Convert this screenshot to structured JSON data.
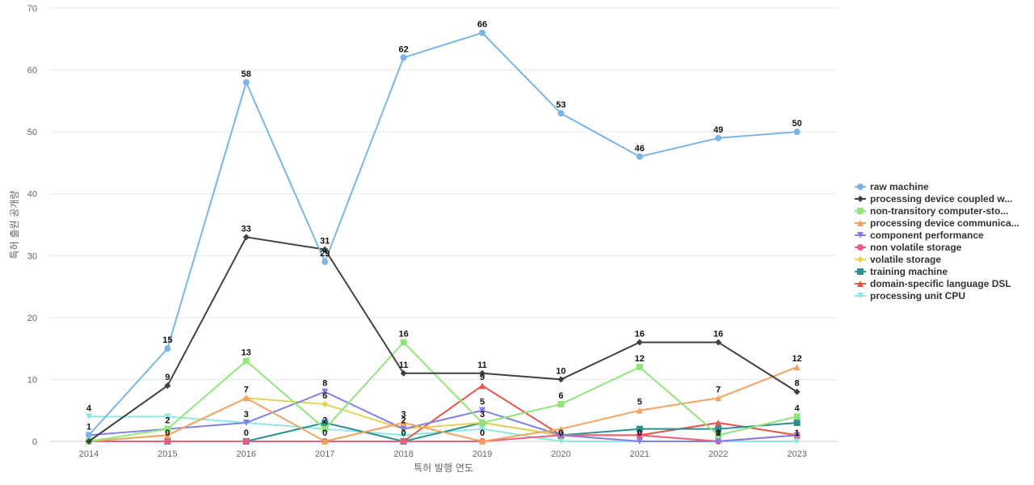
{
  "chart_data": {
    "type": "line",
    "title": "",
    "xlabel": "특허 발행 연도",
    "ylabel": "특허 출원 공개량",
    "x": [
      "2014",
      "2015",
      "2016",
      "2017",
      "2018",
      "2019",
      "2020",
      "2021",
      "2022",
      "2023"
    ],
    "ylim": [
      0,
      70
    ],
    "yticks": [
      0,
      10,
      20,
      30,
      40,
      50,
      60,
      70
    ],
    "grid": true,
    "legend_position": "right",
    "series": [
      {
        "name": "raw machine",
        "color": "#7ab5e6",
        "marker": "circle",
        "values": [
          1,
          15,
          58,
          29,
          62,
          66,
          53,
          46,
          49,
          50
        ]
      },
      {
        "name": "processing device coupled w...",
        "color": "#404040",
        "marker": "diamond",
        "values": [
          0,
          9,
          33,
          31,
          11,
          11,
          10,
          16,
          16,
          8
        ]
      },
      {
        "name": "non-transitory computer-sto...",
        "color": "#90e67a",
        "marker": "square",
        "values": [
          0,
          2,
          13,
          2,
          16,
          3,
          6,
          12,
          1,
          4
        ]
      },
      {
        "name": "processing device communica...",
        "color": "#f4a35f",
        "marker": "triangle",
        "values": [
          0,
          1,
          7,
          0,
          3,
          0,
          2,
          5,
          7,
          12
        ]
      },
      {
        "name": "component performance",
        "color": "#7f80e8",
        "marker": "triangle-down",
        "values": [
          1,
          2,
          3,
          8,
          2,
          5,
          1,
          0,
          0,
          1
        ]
      },
      {
        "name": "non volatile storage",
        "color": "#f15c80",
        "marker": "circle",
        "values": [
          0,
          0,
          0,
          0,
          0,
          0,
          1,
          1,
          0,
          1
        ]
      },
      {
        "name": "volatile storage",
        "color": "#e4d354",
        "marker": "diamond",
        "values": [
          0,
          1,
          7,
          6,
          2,
          3,
          1,
          1,
          0,
          1
        ]
      },
      {
        "name": "training machine",
        "color": "#2b908f",
        "marker": "square",
        "values": [
          0,
          0,
          0,
          3,
          0,
          3,
          1,
          2,
          2,
          3
        ]
      },
      {
        "name": "domain-specific language DSL",
        "color": "#e8534a",
        "marker": "triangle",
        "values": [
          0,
          0,
          0,
          0,
          0,
          9,
          1,
          1,
          3,
          1
        ]
      },
      {
        "name": "processing unit CPU",
        "color": "#91e8e1",
        "marker": "triangle-down",
        "values": [
          4,
          4,
          3,
          2,
          1,
          2,
          0,
          0,
          0,
          0
        ]
      }
    ],
    "point_labels": [
      {
        "series": 0,
        "points": [
          0,
          1,
          2,
          3,
          4,
          5,
          6,
          7,
          8,
          9
        ]
      },
      {
        "series": 1,
        "points": [
          1,
          2,
          3,
          4,
          5,
          6,
          7,
          8,
          9
        ]
      },
      {
        "series": 2,
        "points": [
          2,
          3,
          4,
          6,
          7,
          9
        ]
      },
      {
        "series": 3,
        "points": [
          2,
          4,
          5,
          7,
          8,
          9
        ]
      },
      {
        "series": 4,
        "points": [
          1,
          2,
          3,
          4,
          5,
          8
        ]
      },
      {
        "series": 6,
        "points": [
          3
        ]
      },
      {
        "series": 7,
        "points": [
          5
        ]
      },
      {
        "series": 8,
        "points": [
          5
        ]
      },
      {
        "series": 9,
        "points": [
          0
        ]
      },
      {
        "series": 0,
        "extra": [
          {
            "x": 1,
            "text": "0"
          },
          {
            "x": 2,
            "text": "0"
          },
          {
            "x": 3,
            "text": "0"
          },
          {
            "x": 4,
            "text": "0"
          },
          {
            "x": 6,
            "text": "0"
          },
          {
            "x": 7,
            "text": "0"
          },
          {
            "x": 8,
            "text": "1"
          },
          {
            "x": 9,
            "text": "1"
          }
        ]
      }
    ]
  }
}
